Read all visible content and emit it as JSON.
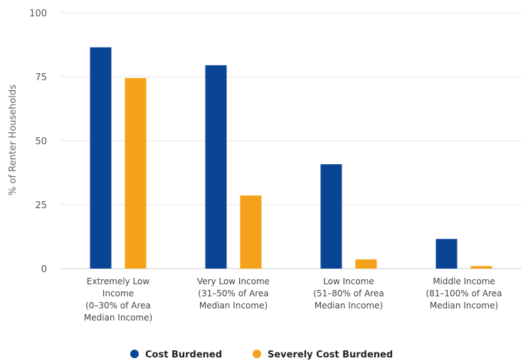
{
  "chart_data": {
    "type": "bar",
    "ylabel": "% of Renter Households",
    "ylim": [
      0,
      100
    ],
    "yticks": [
      0,
      25,
      50,
      75,
      100
    ],
    "grid": true,
    "legend_position": "bottom",
    "categories": [
      [
        "Extremely Low",
        "Income",
        "(0–30% of Area",
        "Median Income)"
      ],
      [
        "Very Low Income",
        "(31–50% of Area",
        "Median Income)"
      ],
      [
        "Low Income",
        "(51–80% of Area",
        "Median Income)"
      ],
      [
        "Middle Income",
        "(81–100% of Area",
        "Median Income)"
      ]
    ],
    "series": [
      {
        "name": "Cost Burdened",
        "color": "#0a4595",
        "values": [
          86.5,
          79.5,
          40.8,
          11.6
        ]
      },
      {
        "name": "Severely Cost Burdened",
        "color": "#f5a21b",
        "values": [
          74.5,
          28.6,
          3.6,
          1.0
        ]
      }
    ]
  }
}
